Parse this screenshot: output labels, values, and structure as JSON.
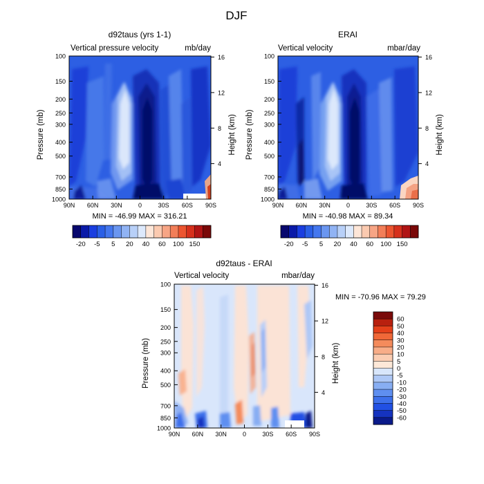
{
  "figure": {
    "title": "DJF"
  },
  "panels": {
    "model": {
      "title": "d92taus (yrs 1-1)",
      "left_label": "Vertical pressure velocity",
      "right_label": "mb/day",
      "stats": "MIN = -46.99   MAX = 316.21"
    },
    "obs": {
      "title": "ERAI",
      "left_label": "Vertical velocity",
      "right_label": "mbar/day",
      "stats": "MIN = -40.98   MAX =  89.34"
    },
    "diff": {
      "title": "d92taus - ERAI",
      "left_label": "Vertical velocity",
      "right_label": "mbar/day",
      "stats": "MIN = -70.96   MAX =  79.29"
    }
  },
  "axes": {
    "ylabel_left": "Pressure (mb)",
    "ylabel_right": "Height (km)",
    "pressure_ticks": [
      "100",
      "150",
      "200",
      "250",
      "300",
      "400",
      "500",
      "700",
      "850",
      "1000"
    ],
    "pressure_values": [
      100,
      150,
      200,
      250,
      300,
      400,
      500,
      700,
      850,
      1000
    ],
    "height_ticks": [
      "16",
      "12",
      "8",
      "4"
    ],
    "height_values": [
      16,
      12,
      8,
      4
    ],
    "lat_ticks": [
      "90N",
      "60N",
      "30N",
      "0",
      "30S",
      "60S",
      "90S"
    ],
    "lat_values": [
      90,
      60,
      30,
      0,
      -30,
      -60,
      -90
    ]
  },
  "colorbars": {
    "main": {
      "labels": [
        "-20",
        "-5",
        "5",
        "20",
        "40",
        "60",
        "100",
        "150"
      ],
      "colors": [
        "#08086e",
        "#0a1aa8",
        "#1a3ee0",
        "#2a5fe6",
        "#4477ee",
        "#6a96f0",
        "#90b3f4",
        "#b8d0f8",
        "#dde9fc",
        "#fde6d8",
        "#fbcab0",
        "#f7a585",
        "#f27e58",
        "#ec5530",
        "#d6301c",
        "#b01414",
        "#7a0808"
      ]
    },
    "diff": {
      "labels": [
        "60",
        "50",
        "40",
        "30",
        "20",
        "10",
        "5",
        "0",
        "-5",
        "-10",
        "-20",
        "-30",
        "-40",
        "-50",
        "-60"
      ],
      "colors": [
        "#7a0a0a",
        "#b8200f",
        "#e4401a",
        "#f06838",
        "#f48b5c",
        "#f8ad88",
        "#fbcdb2",
        "#fde8d8",
        "#d8e6fb",
        "#aec8f6",
        "#88aef3",
        "#5f8ff0",
        "#3d70eb",
        "#2150e4",
        "#1533bf",
        "#0a1a8a"
      ]
    }
  },
  "chart_data": [
    {
      "type": "heatmap",
      "panel": "model",
      "title": "d92taus (yrs 1-1)",
      "variable": "Vertical pressure velocity",
      "units": "mb/day",
      "x": "latitude (90N to 90S)",
      "y": "pressure (mb, log scale)",
      "ylim": [
        1000,
        100
      ],
      "min": -46.99,
      "max": 316.21
    },
    {
      "type": "heatmap",
      "panel": "obs",
      "title": "ERAI",
      "variable": "Vertical velocity",
      "units": "mbar/day",
      "ylim": [
        1000,
        100
      ],
      "min": -40.98,
      "max": 89.34
    },
    {
      "type": "heatmap",
      "panel": "diff",
      "title": "d92taus - ERAI",
      "variable": "Vertical velocity",
      "units": "mbar/day",
      "ylim": [
        1000,
        100
      ],
      "min": -70.96,
      "max": 79.29
    }
  ]
}
